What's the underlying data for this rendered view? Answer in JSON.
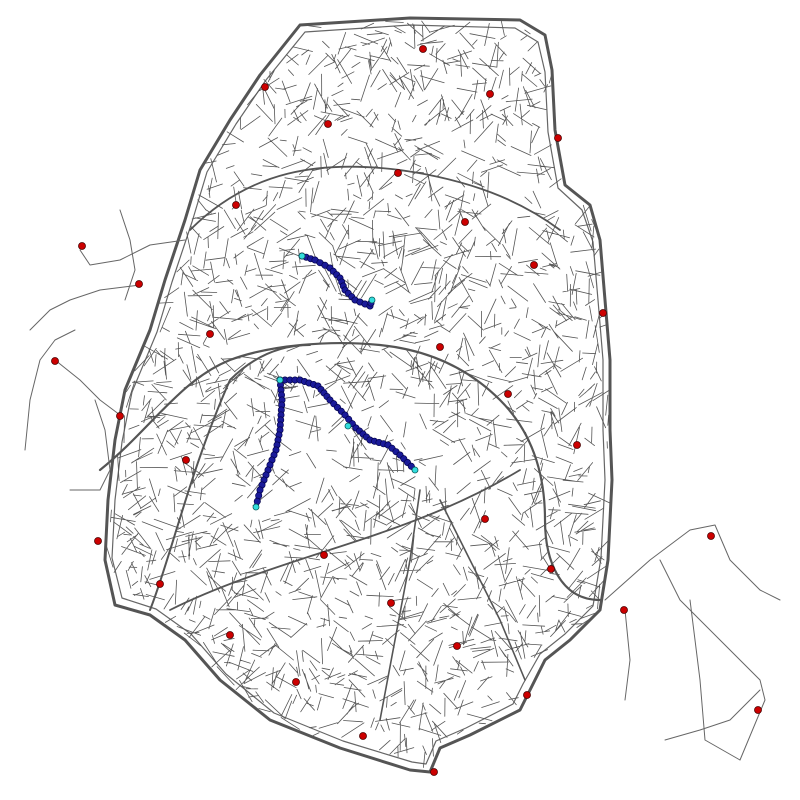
{
  "style": {
    "background": "#ffffff",
    "road_color": "#555555",
    "major_road_color": "#4d4d4d",
    "node_fill": "#cc0000",
    "node_stroke": "#4a0000",
    "route_fill": "#1a1a99",
    "route_stroke": "#000044",
    "endpoint_fill": "#33dddd",
    "endpoint_stroke": "#0a5a5a"
  },
  "layers": [
    "road-network",
    "station-nodes",
    "route-paths"
  ],
  "note_visible_text": ""
}
